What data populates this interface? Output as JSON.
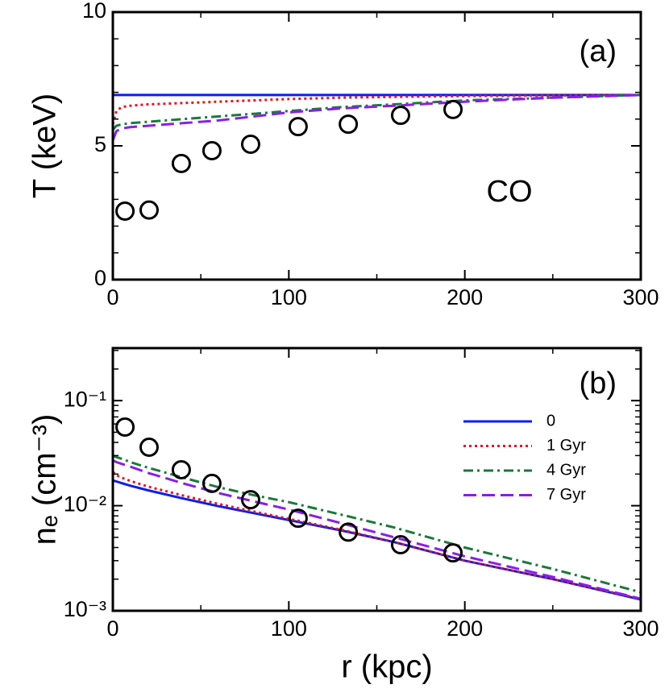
{
  "chart_data": [
    {
      "type": "line",
      "ylabel": "T (keV)",
      "annotations": [
        "(a)",
        "CO"
      ],
      "xlim": [
        0,
        300
      ],
      "xticks": [
        0,
        100,
        200,
        300
      ],
      "ylim": [
        0,
        10
      ],
      "yticks": [
        0,
        5,
        10
      ],
      "yminorticks": [
        1,
        2,
        3,
        4,
        6,
        7,
        8,
        9
      ],
      "x": [
        0,
        2,
        5,
        10,
        20,
        40,
        60,
        80,
        100,
        130,
        160,
        200,
        250,
        300
      ],
      "series": [
        {
          "color": "#0a1ef0",
          "style": "solid",
          "values": [
            6.9,
            6.9,
            6.9,
            6.9,
            6.9,
            6.9,
            6.9,
            6.9,
            6.9,
            6.9,
            6.9,
            6.9,
            6.9,
            6.9
          ]
        },
        {
          "color": "#e8141e",
          "style": "dotted",
          "values": [
            5.8,
            6.3,
            6.45,
            6.5,
            6.55,
            6.6,
            6.65,
            6.7,
            6.75,
            6.8,
            6.83,
            6.86,
            6.88,
            6.9
          ]
        },
        {
          "color": "#1a7a3a",
          "style": "dashdot",
          "values": [
            5.6,
            5.75,
            5.8,
            5.85,
            5.9,
            6.0,
            6.1,
            6.2,
            6.3,
            6.45,
            6.55,
            6.7,
            6.8,
            6.9
          ]
        },
        {
          "color": "#8a1ee8",
          "style": "dashed",
          "values": [
            5.2,
            5.55,
            5.65,
            5.7,
            5.75,
            5.85,
            5.95,
            6.1,
            6.25,
            6.4,
            6.5,
            6.65,
            6.8,
            6.9
          ]
        }
      ],
      "observed": {
        "x": [
          6.9,
          20.6,
          38.9,
          56.3,
          78.3,
          105.3,
          133.8,
          163.5,
          193.3
        ],
        "values": [
          2.56,
          2.6,
          4.34,
          4.82,
          5.06,
          5.72,
          5.81,
          6.14,
          6.36
        ]
      }
    },
    {
      "type": "line",
      "xlabel": "r (kpc)",
      "ylabel": "nₑ (cm⁻³)",
      "annotations": [
        "(b)"
      ],
      "log_y": true,
      "xlim": [
        0,
        300
      ],
      "xticks": [
        0,
        100,
        200,
        300
      ],
      "ylim": [
        0.001,
        0.3162
      ],
      "yticks": [
        {
          "value": 0.001,
          "label": "10⁻³"
        },
        {
          "value": 0.01,
          "label": "10⁻²"
        },
        {
          "value": 0.1,
          "label": "10⁻¹"
        }
      ],
      "legend": "upper right",
      "x": [
        0,
        2,
        5,
        10,
        20,
        40,
        60,
        80,
        100,
        130,
        160,
        200,
        250,
        300
      ],
      "series": [
        {
          "name": "0",
          "color": "#0a1ef0",
          "style": "solid",
          "values": [
            0.0174,
            0.017,
            0.0164,
            0.0155,
            0.014,
            0.0117,
            0.0099,
            0.0085,
            0.0073,
            0.0058,
            0.0045,
            0.003,
            0.002,
            0.00128
          ]
        },
        {
          "name": "1 Gyr",
          "color": "#e8141e",
          "style": "dotted",
          "values": [
            0.021,
            0.0195,
            0.0185,
            0.0172,
            0.0152,
            0.0125,
            0.0104,
            0.0088,
            0.0075,
            0.0059,
            0.0045,
            0.003,
            0.002,
            0.0013
          ]
        },
        {
          "name": "4 Gyr",
          "color": "#1a7a3a",
          "style": "dashdot",
          "values": [
            0.03,
            0.029,
            0.028,
            0.026,
            0.023,
            0.0185,
            0.015,
            0.0126,
            0.0108,
            0.0082,
            0.0062,
            0.004,
            0.0025,
            0.0015
          ]
        },
        {
          "name": "7 Gyr",
          "color": "#8a1ee8",
          "style": "dashed",
          "values": [
            0.027,
            0.026,
            0.025,
            0.0235,
            0.0205,
            0.0163,
            0.0132,
            0.011,
            0.0092,
            0.0068,
            0.005,
            0.0033,
            0.0021,
            0.0013
          ]
        }
      ],
      "observed": {
        "x": [
          6.9,
          20.6,
          38.9,
          56.3,
          78.3,
          105.3,
          133.8,
          163.5,
          193.3
        ],
        "values": [
          0.056,
          0.036,
          0.022,
          0.0163,
          0.0114,
          0.0076,
          0.0056,
          0.00425,
          0.00356
        ]
      }
    }
  ]
}
